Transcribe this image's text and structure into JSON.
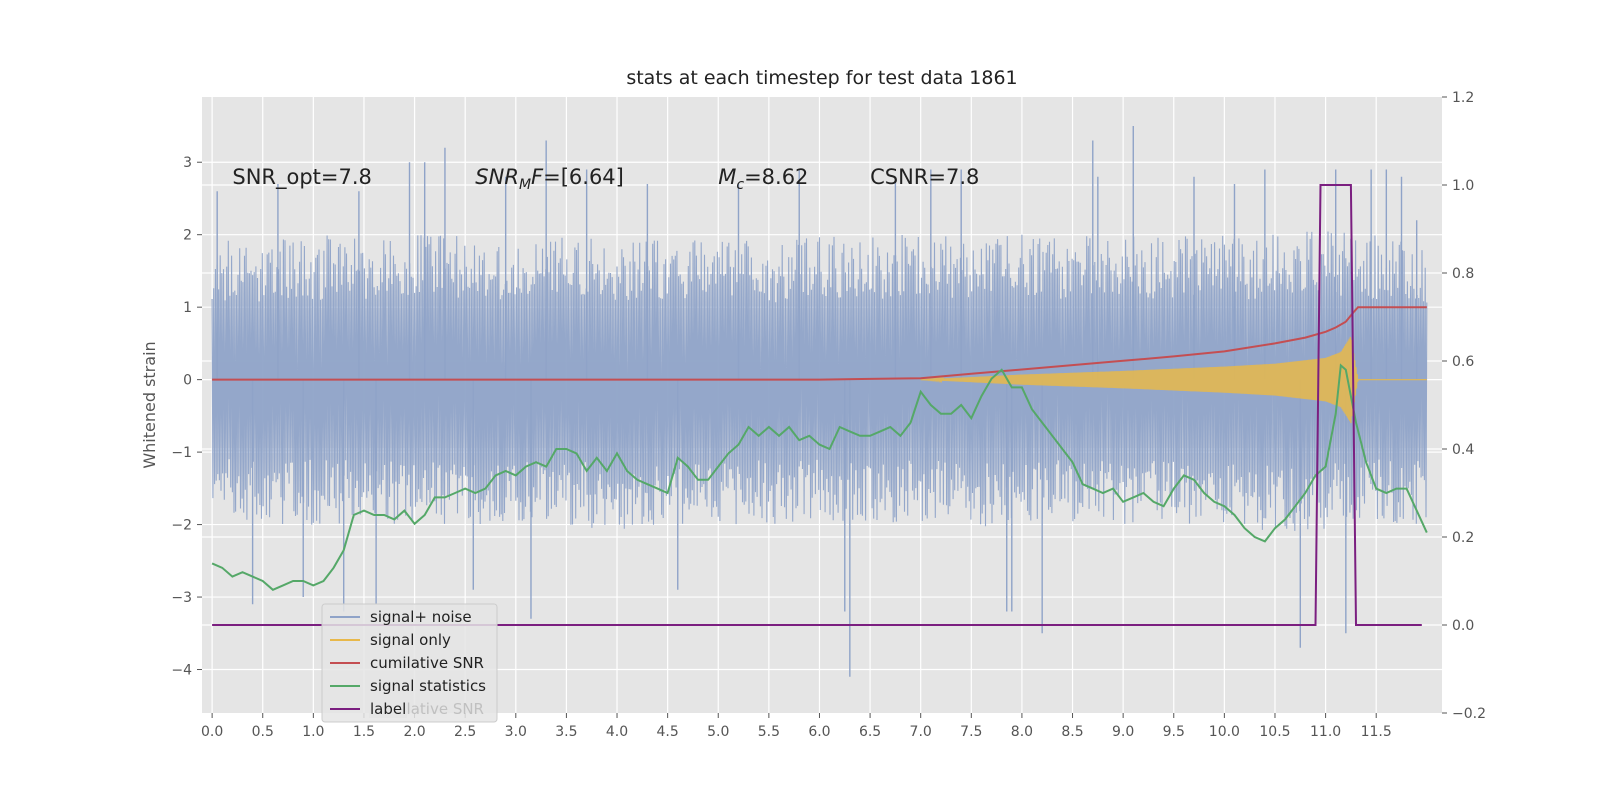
{
  "chart_data": {
    "type": "line",
    "title": "stats at each timestep for test data 1861",
    "ylabel": "Whitened strain",
    "y2label": "",
    "xlim": [
      -0.1,
      12.15
    ],
    "ylim": [
      -4.6,
      3.9
    ],
    "y2lim": [
      -0.2,
      1.2
    ],
    "x_ticks": [
      0.0,
      0.5,
      1.0,
      1.5,
      2.0,
      2.5,
      3.0,
      3.5,
      4.0,
      4.5,
      5.0,
      5.5,
      6.0,
      6.5,
      7.0,
      7.5,
      8.0,
      8.5,
      9.0,
      9.5,
      10.0,
      10.5,
      11.0,
      11.5
    ],
    "x_tick_labels": [
      "0.0",
      "0.5",
      "1.0",
      "1.5",
      "2.0",
      "2.5",
      "3.0",
      "3.5",
      "4.0",
      "4.5",
      "5.0",
      "5.5",
      "6.0",
      "6.5",
      "7.0",
      "7.5",
      "8.0",
      "8.5",
      "9.0",
      "9.5",
      "10.0",
      "10.5",
      "11.0",
      "11.5"
    ],
    "y_ticks": [
      -4,
      -3,
      -2,
      -1,
      0,
      1,
      2,
      3
    ],
    "y_tick_labels": [
      "−4",
      "−3",
      "−2",
      "−1",
      "0",
      "1",
      "2",
      "3"
    ],
    "y2_ticks": [
      -0.2,
      0.0,
      0.2,
      0.4,
      0.6,
      0.8,
      1.0,
      1.2
    ],
    "y2_tick_labels": [
      "−0.2",
      "0.0",
      "0.2",
      "0.4",
      "0.6",
      "0.8",
      "1.0",
      "1.2"
    ],
    "grid": true,
    "legend_position": "lower-left",
    "annotations": [
      {
        "text": "SNR_opt=7.8",
        "x": 0.2
      },
      {
        "text": "SNR",
        "sub": "M",
        "suffix": "F=[6.64]",
        "x": 2.6
      },
      {
        "text": "M",
        "sub": "c",
        "suffix": "=8.62",
        "x": 5.0
      },
      {
        "text": "CSNR=7.8",
        "x": 6.5
      }
    ],
    "annotation_y": 2.7,
    "series": [
      {
        "name": "signal+ noise",
        "axis": "left",
        "color": "#8fa3c8",
        "style": "noise",
        "x_range": [
          0.0,
          12.0
        ],
        "band": [
          [
            0.0,
            -1.8,
            2.0
          ],
          [
            0.5,
            -2.0,
            1.9
          ],
          [
            1.0,
            -2.0,
            2.0
          ],
          [
            1.5,
            -2.0,
            2.0
          ],
          [
            2.0,
            -2.1,
            2.0
          ],
          [
            2.5,
            -2.0,
            2.0
          ],
          [
            3.0,
            -2.0,
            1.9
          ],
          [
            3.5,
            -2.0,
            2.0
          ],
          [
            4.0,
            -2.1,
            2.0
          ],
          [
            4.5,
            -2.0,
            2.0
          ],
          [
            5.0,
            -2.0,
            2.0
          ],
          [
            5.5,
            -2.0,
            1.9
          ],
          [
            6.0,
            -2.0,
            2.0
          ],
          [
            6.5,
            -2.0,
            2.0
          ],
          [
            7.0,
            -2.0,
            2.0
          ],
          [
            7.5,
            -2.1,
            2.0
          ],
          [
            8.0,
            -2.0,
            2.0
          ],
          [
            8.5,
            -2.0,
            2.0
          ],
          [
            9.0,
            -2.0,
            2.0
          ],
          [
            9.5,
            -2.0,
            2.0
          ],
          [
            10.0,
            -2.0,
            2.0
          ],
          [
            10.5,
            -2.1,
            2.0
          ],
          [
            11.0,
            -2.1,
            2.1
          ],
          [
            11.5,
            -2.0,
            2.0
          ],
          [
            12.0,
            -2.0,
            1.9
          ]
        ],
        "spikes": [
          [
            0.05,
            2.6
          ],
          [
            0.4,
            -3.1
          ],
          [
            0.65,
            2.7
          ],
          [
            0.9,
            -3.0
          ],
          [
            1.3,
            -3.2
          ],
          [
            1.45,
            2.6
          ],
          [
            1.62,
            -3.1
          ],
          [
            1.95,
            3.0
          ],
          [
            2.1,
            3.0
          ],
          [
            2.3,
            3.2
          ],
          [
            2.58,
            -2.9
          ],
          [
            2.9,
            2.8
          ],
          [
            3.15,
            -3.3
          ],
          [
            3.3,
            3.3
          ],
          [
            3.7,
            2.9
          ],
          [
            4.3,
            2.7
          ],
          [
            4.6,
            -2.9
          ],
          [
            5.2,
            2.7
          ],
          [
            5.8,
            2.9
          ],
          [
            6.25,
            -3.2
          ],
          [
            6.3,
            -4.1
          ],
          [
            6.75,
            2.8
          ],
          [
            7.1,
            2.9
          ],
          [
            7.4,
            2.9
          ],
          [
            7.85,
            -3.2
          ],
          [
            7.9,
            -3.2
          ],
          [
            8.2,
            -3.5
          ],
          [
            8.7,
            3.3
          ],
          [
            8.75,
            2.8
          ],
          [
            9.1,
            3.5
          ],
          [
            9.7,
            2.8
          ],
          [
            10.1,
            2.7
          ],
          [
            10.4,
            2.9
          ],
          [
            10.75,
            -3.7
          ],
          [
            11.1,
            2.9
          ],
          [
            11.2,
            -3.5
          ],
          [
            11.45,
            2.9
          ],
          [
            11.6,
            2.9
          ],
          [
            11.75,
            2.8
          ],
          [
            11.9,
            2.2
          ]
        ]
      },
      {
        "name": "signal only",
        "axis": "left",
        "color": "#e8b84a",
        "style": "chirp",
        "x_range": [
          7.0,
          12.0
        ],
        "envelope": [
          [
            7.0,
            0.0
          ],
          [
            8.0,
            0.07
          ],
          [
            9.0,
            0.12
          ],
          [
            10.0,
            0.18
          ],
          [
            10.5,
            0.22
          ],
          [
            11.0,
            0.3
          ],
          [
            11.15,
            0.38
          ],
          [
            11.25,
            0.6
          ],
          [
            11.32,
            0.0
          ],
          [
            12.0,
            0.0
          ]
        ]
      },
      {
        "name": "cumilative SNR",
        "axis": "left",
        "color": "#c44e52",
        "x": [
          0.0,
          6.0,
          6.5,
          7.0,
          7.5,
          8.0,
          8.5,
          9.0,
          9.5,
          10.0,
          10.5,
          10.8,
          11.0,
          11.1,
          11.2,
          11.27,
          11.32,
          12.0
        ],
        "y": [
          0.0,
          0.0,
          0.01,
          0.02,
          0.08,
          0.14,
          0.2,
          0.26,
          0.32,
          0.39,
          0.5,
          0.58,
          0.66,
          0.72,
          0.8,
          0.92,
          1.0,
          1.0
        ]
      },
      {
        "name": "signal statistics",
        "axis": "right",
        "color": "#55a868",
        "x": [
          0.0,
          0.1,
          0.2,
          0.3,
          0.4,
          0.5,
          0.6,
          0.7,
          0.8,
          0.9,
          1.0,
          1.1,
          1.2,
          1.3,
          1.4,
          1.5,
          1.6,
          1.7,
          1.8,
          1.9,
          2.0,
          2.1,
          2.2,
          2.3,
          2.4,
          2.5,
          2.6,
          2.7,
          2.8,
          2.9,
          3.0,
          3.1,
          3.2,
          3.3,
          3.4,
          3.5,
          3.6,
          3.7,
          3.8,
          3.9,
          4.0,
          4.1,
          4.2,
          4.3,
          4.4,
          4.5,
          4.6,
          4.7,
          4.8,
          4.9,
          5.0,
          5.1,
          5.2,
          5.3,
          5.4,
          5.5,
          5.6,
          5.7,
          5.8,
          5.9,
          6.0,
          6.1,
          6.2,
          6.3,
          6.4,
          6.5,
          6.6,
          6.7,
          6.8,
          6.9,
          7.0,
          7.1,
          7.2,
          7.3,
          7.4,
          7.5,
          7.6,
          7.7,
          7.8,
          7.9,
          8.0,
          8.1,
          8.2,
          8.3,
          8.4,
          8.5,
          8.6,
          8.7,
          8.8,
          8.9,
          9.0,
          9.1,
          9.2,
          9.3,
          9.4,
          9.5,
          9.6,
          9.7,
          9.8,
          9.9,
          10.0,
          10.1,
          10.2,
          10.3,
          10.4,
          10.5,
          10.6,
          10.7,
          10.8,
          10.9,
          11.0,
          11.1,
          11.15,
          11.2,
          11.3,
          11.4,
          11.5,
          11.6,
          11.7,
          11.8,
          11.9,
          12.0
        ],
        "y": [
          0.14,
          0.13,
          0.11,
          0.12,
          0.11,
          0.1,
          0.08,
          0.09,
          0.1,
          0.1,
          0.09,
          0.1,
          0.13,
          0.17,
          0.25,
          0.26,
          0.25,
          0.25,
          0.24,
          0.26,
          0.23,
          0.25,
          0.29,
          0.29,
          0.3,
          0.31,
          0.3,
          0.31,
          0.34,
          0.35,
          0.34,
          0.36,
          0.37,
          0.36,
          0.4,
          0.4,
          0.39,
          0.35,
          0.38,
          0.35,
          0.39,
          0.35,
          0.33,
          0.32,
          0.31,
          0.3,
          0.38,
          0.36,
          0.33,
          0.33,
          0.36,
          0.39,
          0.41,
          0.45,
          0.43,
          0.45,
          0.43,
          0.45,
          0.42,
          0.43,
          0.41,
          0.4,
          0.45,
          0.44,
          0.43,
          0.43,
          0.44,
          0.45,
          0.43,
          0.46,
          0.53,
          0.5,
          0.48,
          0.48,
          0.5,
          0.47,
          0.52,
          0.56,
          0.58,
          0.54,
          0.54,
          0.49,
          0.46,
          0.43,
          0.4,
          0.37,
          0.32,
          0.31,
          0.3,
          0.31,
          0.28,
          0.29,
          0.3,
          0.28,
          0.27,
          0.31,
          0.34,
          0.33,
          0.3,
          0.28,
          0.27,
          0.25,
          0.22,
          0.2,
          0.19,
          0.22,
          0.24,
          0.27,
          0.3,
          0.34,
          0.36,
          0.48,
          0.59,
          0.58,
          0.46,
          0.37,
          0.31,
          0.3,
          0.31,
          0.31,
          0.26,
          0.21
        ],
        "legend_overlay_text": "cumilative SNR"
      },
      {
        "name": "label",
        "axis": "right",
        "color": "#7b1f80",
        "x": [
          0.0,
          10.9,
          10.95,
          11.25,
          11.3,
          11.95
        ],
        "y": [
          0.0,
          0.0,
          1.0,
          1.0,
          0.0,
          0.0
        ]
      }
    ]
  }
}
